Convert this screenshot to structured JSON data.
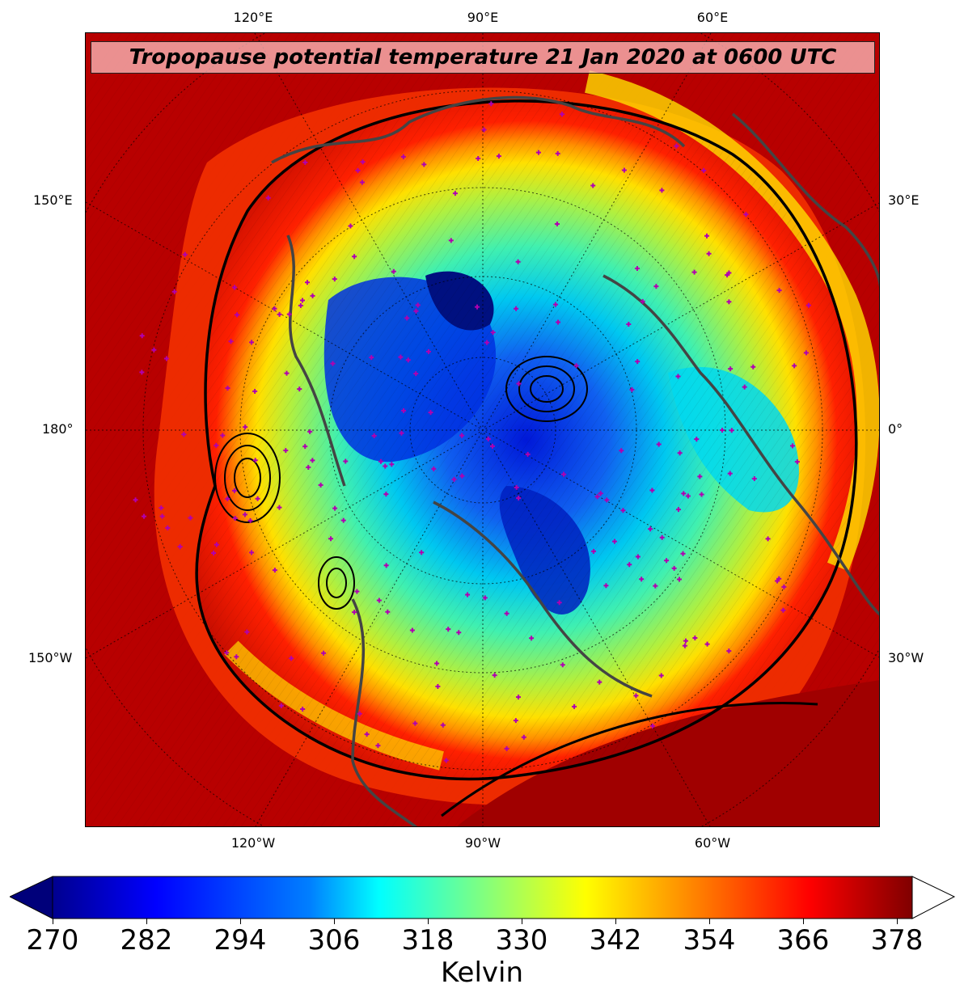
{
  "title": "Tropopause potential temperature 21 Jan 2020 at 0600 UTC",
  "colors": {
    "colormap": [
      "#00008f",
      "#0000ff",
      "#0080ff",
      "#00ffff",
      "#80ff80",
      "#ffff00",
      "#ff8000",
      "#ff0000",
      "#800000"
    ],
    "station_markers": "#b000b0",
    "coastlines": "#444444",
    "contours": "#000000"
  },
  "map": {
    "projection": "polar-stereographic",
    "graticule_style": "dotted",
    "top_lon_labels": [
      "120°E",
      "90°E",
      "60°E"
    ],
    "bottom_lon_labels": [
      "120°W",
      "90°W",
      "60°W"
    ],
    "left_labels": [
      "150°E",
      "180°",
      "150°W"
    ],
    "right_labels": [
      "30°E",
      "0°",
      "30°W"
    ],
    "features": [
      "coastlines",
      "country-borders",
      "station-markers",
      "pressure-contours"
    ]
  },
  "colorbar": {
    "ticks": [
      "270",
      "282",
      "294",
      "306",
      "318",
      "330",
      "342",
      "354",
      "366",
      "378"
    ],
    "units": "Kelvin",
    "min": 270,
    "max": 378,
    "extend": "both"
  }
}
